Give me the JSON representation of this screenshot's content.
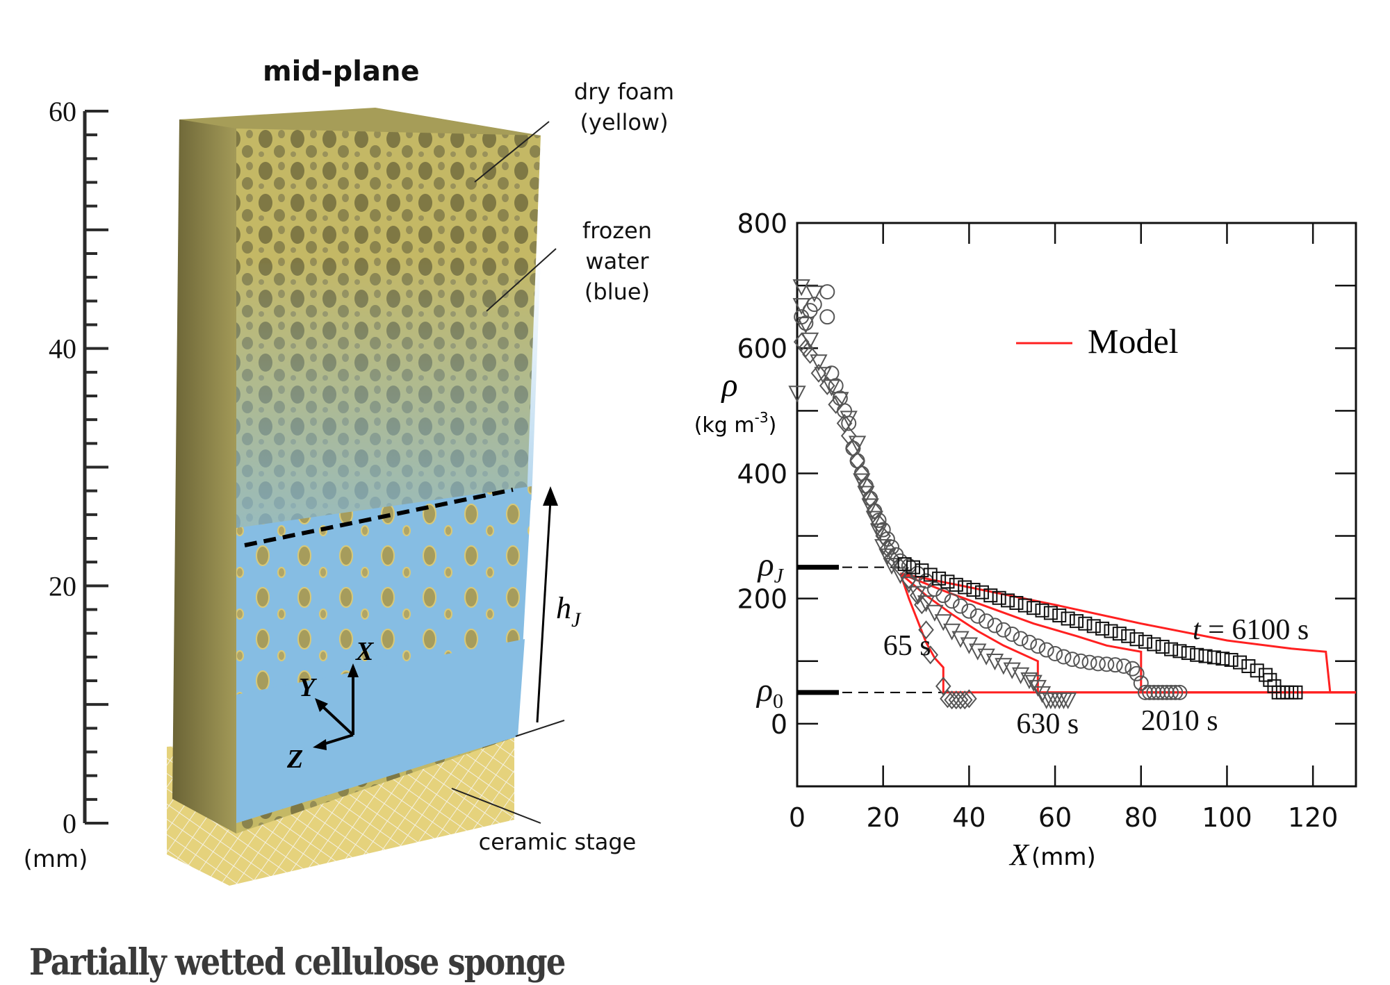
{
  "caption": "Partially wetted cellulose sponge",
  "left_panel": {
    "title": "mid-plane",
    "scale_axis": {
      "ticks": [
        "0",
        "20",
        "40",
        "60"
      ],
      "unit": "(mm)",
      "range": [
        0,
        60
      ],
      "minor_step": 2
    },
    "labels": {
      "dry_foam": [
        "dry foam",
        "(yellow)"
      ],
      "frozen_water": [
        "frozen",
        "water",
        "(blue)"
      ],
      "ceramic_stage": "ceramic stage",
      "h_j": "h",
      "h_j_sub": "J",
      "axis_x": "X",
      "axis_y": "Y",
      "axis_z": "Z"
    },
    "colors": {
      "foam": "#c9bd6a",
      "foam_dark": "#7d7540",
      "water": "#86bde3",
      "stage": "#e6d27a"
    }
  },
  "chart_data": {
    "type": "scatter",
    "title": "",
    "xlabel": "X",
    "xlabel_unit": "(mm)",
    "ylabel": "ρ",
    "ylabel_unit": "(kg m",
    "ylabel_unit_sup": "-3",
    "ylabel_unit_close": ")",
    "xlim": [
      0,
      130
    ],
    "ylim": [
      -100,
      800
    ],
    "xticks": [
      0,
      20,
      40,
      60,
      80,
      100,
      120
    ],
    "yticks": [
      0,
      200,
      400,
      600,
      800
    ],
    "y_minor_step": 100,
    "reference_levels": [
      {
        "name": "ρ",
        "sub": "J",
        "value": 250
      },
      {
        "name": "ρ",
        "sub": "0",
        "value": 50
      }
    ],
    "legend": {
      "label": "Model",
      "position": "top-right",
      "color": "#ff2020"
    },
    "annotations": [
      {
        "text": "65 s",
        "x": 20,
        "y": 110
      },
      {
        "text": "630 s",
        "x": 51,
        "y": -15
      },
      {
        "text": "2010 s",
        "x": 80,
        "y": -10
      },
      {
        "text": "t = 6100 s",
        "x": 92,
        "y": 135
      }
    ],
    "series": [
      {
        "name": "65 s",
        "marker": "diamond",
        "points": [
          [
            1,
            610
          ],
          [
            2,
            600
          ],
          [
            3,
            590
          ],
          [
            5,
            560
          ],
          [
            7,
            540
          ],
          [
            9,
            510
          ],
          [
            11,
            480
          ],
          [
            12,
            460
          ],
          [
            13,
            440
          ],
          [
            14,
            420
          ],
          [
            15,
            400
          ],
          [
            16,
            380
          ],
          [
            17,
            360
          ],
          [
            18,
            340
          ],
          [
            19,
            320
          ],
          [
            20,
            300
          ],
          [
            21,
            280
          ],
          [
            22,
            265
          ],
          [
            24,
            250
          ],
          [
            26,
            230
          ],
          [
            28,
            205
          ],
          [
            29,
            190
          ],
          [
            30,
            150
          ],
          [
            31,
            110
          ],
          [
            34,
            60
          ],
          [
            35,
            40
          ],
          [
            36,
            38
          ],
          [
            37,
            38
          ],
          [
            38,
            38
          ],
          [
            39,
            38
          ],
          [
            40,
            40
          ]
        ]
      },
      {
        "name": "630 s",
        "marker": "triangle-down",
        "points": [
          [
            0,
            530
          ],
          [
            1,
            700
          ],
          [
            1,
            670
          ],
          [
            2,
            640
          ],
          [
            3,
            615
          ],
          [
            4,
            690
          ],
          [
            5,
            580
          ],
          [
            6,
            560
          ],
          [
            8,
            540
          ],
          [
            10,
            520
          ],
          [
            12,
            490
          ],
          [
            14,
            450
          ],
          [
            15,
            390
          ],
          [
            16,
            370
          ],
          [
            17,
            350
          ],
          [
            18,
            330
          ],
          [
            19,
            310
          ],
          [
            20,
            285
          ],
          [
            21,
            270
          ],
          [
            22,
            255
          ],
          [
            24,
            240
          ],
          [
            26,
            225
          ],
          [
            28,
            210
          ],
          [
            30,
            195
          ],
          [
            32,
            180
          ],
          [
            34,
            165
          ],
          [
            36,
            150
          ],
          [
            38,
            138
          ],
          [
            40,
            128
          ],
          [
            42,
            118
          ],
          [
            44,
            110
          ],
          [
            46,
            102
          ],
          [
            48,
            95
          ],
          [
            50,
            88
          ],
          [
            52,
            80
          ],
          [
            54,
            72
          ],
          [
            55,
            68
          ],
          [
            56,
            60
          ],
          [
            57,
            50
          ],
          [
            58,
            40
          ],
          [
            59,
            40
          ],
          [
            60,
            40
          ],
          [
            61,
            40
          ],
          [
            62,
            40
          ],
          [
            63,
            40
          ]
        ]
      },
      {
        "name": "2010 s",
        "marker": "circle",
        "points": [
          [
            1,
            650
          ],
          [
            2,
            640
          ],
          [
            3,
            660
          ],
          [
            4,
            670
          ],
          [
            7,
            690
          ],
          [
            7,
            650
          ],
          [
            8,
            560
          ],
          [
            9,
            540
          ],
          [
            10,
            520
          ],
          [
            11,
            500
          ],
          [
            12,
            480
          ],
          [
            13,
            440
          ],
          [
            14,
            420
          ],
          [
            15,
            400
          ],
          [
            16,
            380
          ],
          [
            17,
            360
          ],
          [
            18,
            340
          ],
          [
            19,
            325
          ],
          [
            20,
            310
          ],
          [
            21,
            295
          ],
          [
            22,
            282
          ],
          [
            23,
            270
          ],
          [
            24,
            260
          ],
          [
            26,
            252
          ],
          [
            28,
            240
          ],
          [
            30,
            228
          ],
          [
            32,
            215
          ],
          [
            34,
            205
          ],
          [
            36,
            196
          ],
          [
            38,
            188
          ],
          [
            40,
            180
          ],
          [
            42,
            172
          ],
          [
            44,
            164
          ],
          [
            46,
            157
          ],
          [
            48,
            150
          ],
          [
            50,
            143
          ],
          [
            52,
            136
          ],
          [
            54,
            130
          ],
          [
            56,
            124
          ],
          [
            58,
            118
          ],
          [
            60,
            112
          ],
          [
            62,
            107
          ],
          [
            64,
            103
          ],
          [
            66,
            100
          ],
          [
            68,
            98
          ],
          [
            70,
            96
          ],
          [
            72,
            95
          ],
          [
            74,
            94
          ],
          [
            76,
            92
          ],
          [
            78,
            88
          ],
          [
            79,
            80
          ],
          [
            80,
            65
          ],
          [
            81,
            50
          ],
          [
            82,
            50
          ],
          [
            83,
            50
          ],
          [
            84,
            50
          ],
          [
            85,
            50
          ],
          [
            86,
            50
          ],
          [
            87,
            50
          ],
          [
            88,
            50
          ],
          [
            89,
            50
          ]
        ]
      },
      {
        "name": "6100 s",
        "marker": "square",
        "points": [
          [
            25,
            255
          ],
          [
            27,
            250
          ],
          [
            29,
            245
          ],
          [
            31,
            238
          ],
          [
            33,
            232
          ],
          [
            35,
            227
          ],
          [
            37,
            222
          ],
          [
            39,
            218
          ],
          [
            41,
            214
          ],
          [
            43,
            210
          ],
          [
            45,
            205
          ],
          [
            47,
            201
          ],
          [
            49,
            197
          ],
          [
            51,
            193
          ],
          [
            53,
            189
          ],
          [
            55,
            185
          ],
          [
            57,
            181
          ],
          [
            59,
            177
          ],
          [
            61,
            173
          ],
          [
            63,
            168
          ],
          [
            65,
            164
          ],
          [
            67,
            160
          ],
          [
            69,
            156
          ],
          [
            71,
            152
          ],
          [
            73,
            148
          ],
          [
            75,
            144
          ],
          [
            77,
            140
          ],
          [
            79,
            135
          ],
          [
            81,
            131
          ],
          [
            83,
            127
          ],
          [
            85,
            123
          ],
          [
            87,
            119
          ],
          [
            89,
            116
          ],
          [
            91,
            113
          ],
          [
            93,
            110
          ],
          [
            95,
            108
          ],
          [
            97,
            106
          ],
          [
            99,
            104
          ],
          [
            101,
            102
          ],
          [
            103,
            98
          ],
          [
            105,
            92
          ],
          [
            107,
            85
          ],
          [
            109,
            78
          ],
          [
            110,
            70
          ],
          [
            111,
            60
          ],
          [
            112,
            50
          ],
          [
            113,
            50
          ],
          [
            114,
            50
          ],
          [
            115,
            50
          ],
          [
            116,
            50
          ]
        ]
      }
    ],
    "model_curves": [
      {
        "name": "65 s",
        "points": [
          [
            24,
            240
          ],
          [
            26,
            200
          ],
          [
            28,
            165
          ],
          [
            30,
            130
          ],
          [
            32,
            105
          ],
          [
            34,
            90
          ],
          [
            34,
            50
          ],
          [
            130,
            50
          ]
        ]
      },
      {
        "name": "630 s",
        "points": [
          [
            24,
            240
          ],
          [
            30,
            205
          ],
          [
            36,
            175
          ],
          [
            42,
            148
          ],
          [
            48,
            125
          ],
          [
            56,
            100
          ],
          [
            56,
            50
          ],
          [
            130,
            50
          ]
        ]
      },
      {
        "name": "2010 s",
        "points": [
          [
            24,
            240
          ],
          [
            35,
            210
          ],
          [
            45,
            185
          ],
          [
            55,
            160
          ],
          [
            65,
            140
          ],
          [
            72,
            125
          ],
          [
            80,
            115
          ],
          [
            80,
            50
          ],
          [
            130,
            50
          ]
        ]
      },
      {
        "name": "6100 s",
        "points": [
          [
            24,
            240
          ],
          [
            40,
            218
          ],
          [
            60,
            190
          ],
          [
            80,
            160
          ],
          [
            100,
            133
          ],
          [
            115,
            120
          ],
          [
            123,
            115
          ],
          [
            124,
            50
          ],
          [
            130,
            50
          ]
        ]
      }
    ]
  }
}
